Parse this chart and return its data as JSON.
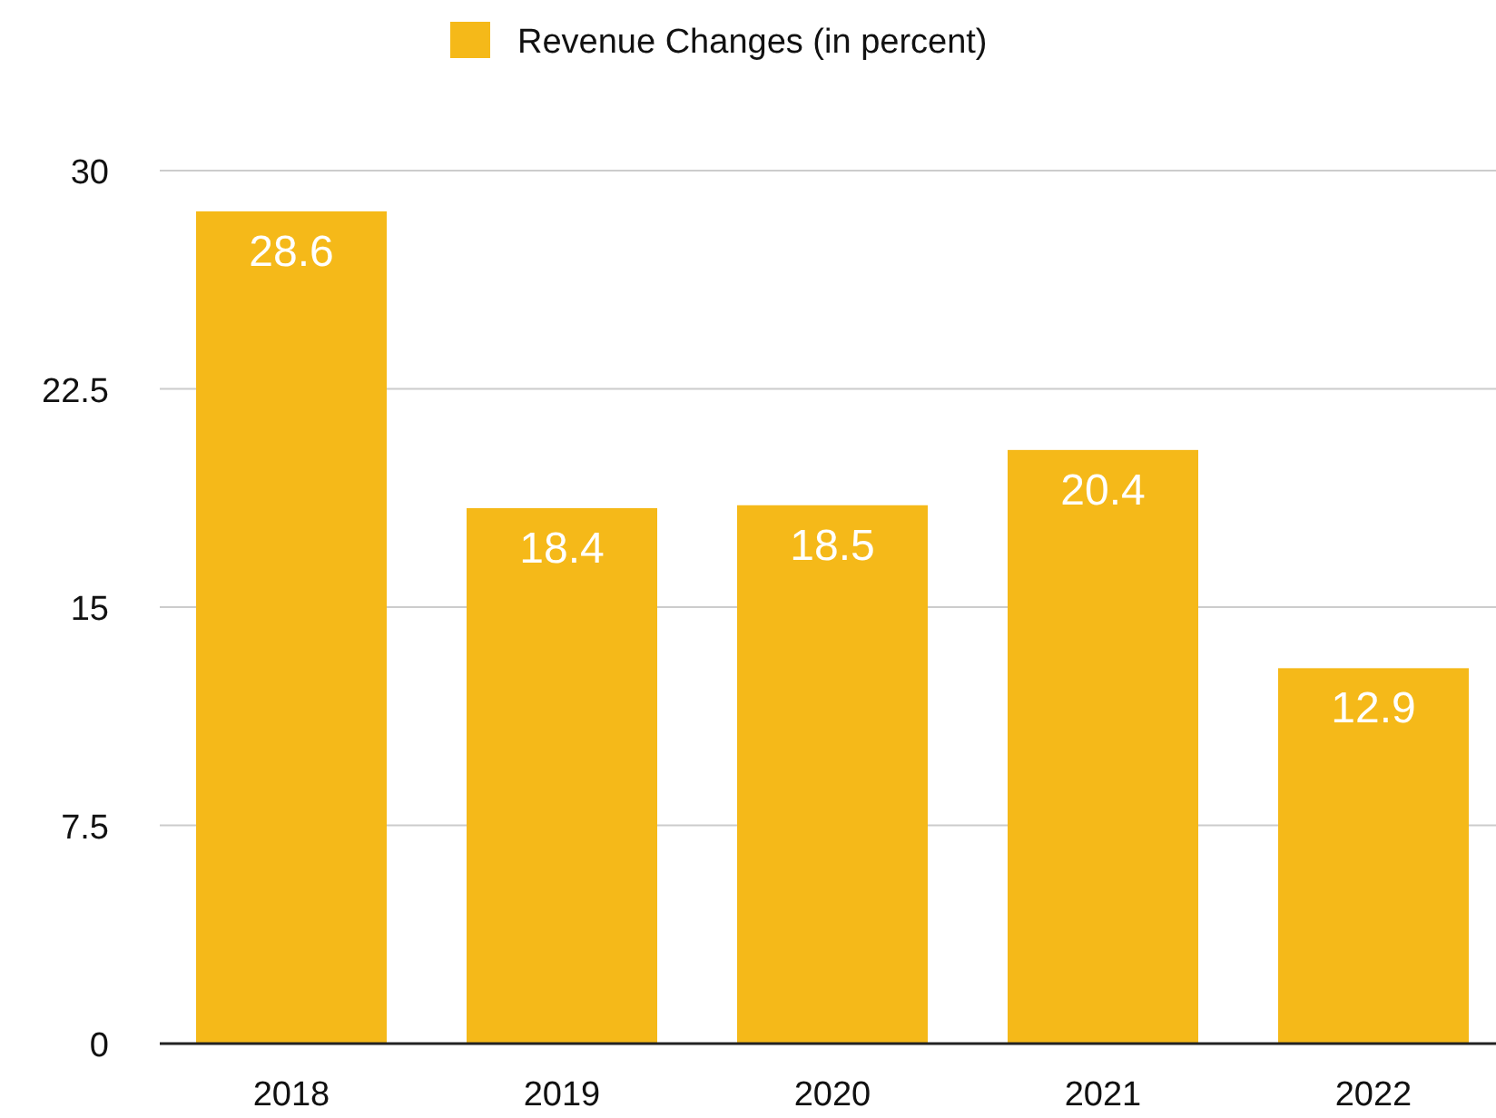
{
  "chart_data": {
    "type": "bar",
    "categories": [
      "2018",
      "2019",
      "2020",
      "2021",
      "2022"
    ],
    "series": [
      {
        "name": "Revenue Changes (in percent)",
        "color": "#f5b919",
        "values": [
          28.6,
          18.4,
          18.5,
          20.4,
          12.9
        ]
      }
    ],
    "ylim": [
      0,
      30
    ],
    "yticks": [
      0,
      7.5,
      15,
      22.5,
      30
    ],
    "grid": "y",
    "legend": "top",
    "data_labels": true
  }
}
